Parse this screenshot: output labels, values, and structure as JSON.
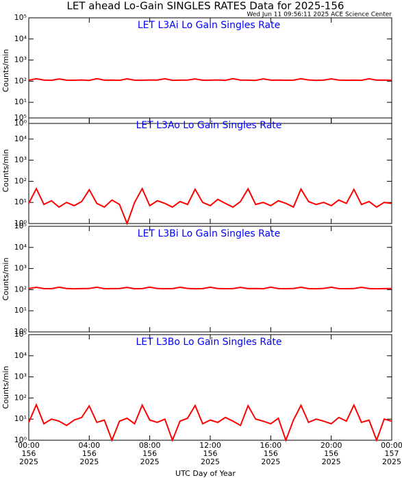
{
  "header": {
    "title": "LET ahead Lo-Gain SINGLES RATES Data for 2025-156",
    "timestamp": "Wed Jun 11 09:56:11 2025 ACE Science Center"
  },
  "chart_data": [
    {
      "type": "line",
      "title": "LET L3Ai Lo Gain Singles Rate",
      "ylabel": "Counts/min",
      "log": true,
      "xlim": [
        0,
        24
      ],
      "xticks": [
        0,
        4,
        8,
        12,
        16,
        20,
        24
      ],
      "ylim": [
        1,
        100000
      ],
      "yticks": [
        {
          "value": 1,
          "label": "10⁰"
        },
        {
          "value": 10,
          "label": "10¹"
        },
        {
          "value": 100,
          "label": "10²"
        },
        {
          "value": 1000,
          "label": "10³"
        },
        {
          "value": 10000,
          "label": "10⁴"
        },
        {
          "value": 100000,
          "label": "10⁵"
        }
      ],
      "x": [
        0,
        0.5,
        1,
        1.5,
        2,
        2.5,
        3,
        3.5,
        4,
        4.5,
        5,
        5.5,
        6,
        6.5,
        7,
        7.5,
        8,
        8.5,
        9,
        9.5,
        10,
        10.5,
        11,
        11.5,
        12,
        12.5,
        13,
        13.5,
        14,
        14.5,
        15,
        15.5,
        16,
        16.5,
        17,
        17.5,
        18,
        18.5,
        19,
        19.5,
        20,
        20.5,
        21,
        21.5,
        22,
        22.5,
        23,
        23.5,
        24
      ],
      "series": [
        {
          "color": "#ff0000",
          "values": [
            112,
            130,
            113,
            110,
            128,
            112,
            111,
            114,
            109,
            131,
            112,
            113,
            110,
            129,
            112,
            111,
            114,
            113,
            130,
            110,
            112,
            113,
            128,
            111,
            112,
            114,
            110,
            131,
            113,
            112,
            109,
            129,
            112,
            113,
            111,
            112,
            130,
            114,
            110,
            112,
            129,
            113,
            111,
            112,
            110,
            130,
            112,
            113,
            111
          ]
        }
      ]
    },
    {
      "type": "line",
      "title": "LET L3Ao Lo Gain Singles Rate",
      "ylabel": "Counts/min",
      "log": true,
      "xlim": [
        0,
        24
      ],
      "xticks": [
        0,
        4,
        8,
        12,
        16,
        20,
        24
      ],
      "ylim": [
        1,
        100000
      ],
      "yticks": [
        {
          "value": 1,
          "label": "10⁰"
        },
        {
          "value": 10,
          "label": "10¹"
        },
        {
          "value": 100,
          "label": "10²"
        },
        {
          "value": 1000,
          "label": "10³"
        },
        {
          "value": 10000,
          "label": "10⁴"
        },
        {
          "value": 100000,
          "label": "10⁵"
        }
      ],
      "x": [
        0,
        0.5,
        1,
        1.5,
        2,
        2.5,
        3,
        3.5,
        4,
        4.5,
        5,
        5.5,
        6,
        6.5,
        7,
        7.5,
        8,
        8.5,
        9,
        9.5,
        10,
        10.5,
        11,
        11.5,
        12,
        12.5,
        13,
        13.5,
        14,
        14.5,
        15,
        15.5,
        16,
        16.5,
        17,
        17.5,
        18,
        18.5,
        19,
        19.5,
        20,
        20.5,
        21,
        21.5,
        22,
        22.5,
        23,
        23.5,
        24
      ],
      "series": [
        {
          "color": "#ff0000",
          "values": [
            9,
            45,
            8,
            12,
            6,
            10,
            7,
            11,
            40,
            9,
            6,
            13,
            8,
            1,
            10,
            45,
            7,
            12,
            9,
            6,
            11,
            8,
            42,
            10,
            7,
            14,
            9,
            6,
            11,
            44,
            8,
            10,
            7,
            12,
            9,
            6,
            43,
            11,
            8,
            10,
            7,
            13,
            9,
            41,
            8,
            11,
            6,
            10,
            9
          ]
        }
      ]
    },
    {
      "type": "line",
      "title": "LET L3Bi Lo Gain Singles Rate",
      "ylabel": "Counts/min",
      "log": true,
      "xlim": [
        0,
        24
      ],
      "xticks": [
        0,
        4,
        8,
        12,
        16,
        20,
        24
      ],
      "ylim": [
        1,
        100000
      ],
      "yticks": [
        {
          "value": 1,
          "label": "10⁰"
        },
        {
          "value": 10,
          "label": "10¹"
        },
        {
          "value": 100,
          "label": "10²"
        },
        {
          "value": 1000,
          "label": "10³"
        },
        {
          "value": 10000,
          "label": "10⁴"
        },
        {
          "value": 100000,
          "label": "10⁵"
        }
      ],
      "x": [
        0,
        0.5,
        1,
        1.5,
        2,
        2.5,
        3,
        3.5,
        4,
        4.5,
        5,
        5.5,
        6,
        6.5,
        7,
        7.5,
        8,
        8.5,
        9,
        9.5,
        10,
        10.5,
        11,
        11.5,
        12,
        12.5,
        13,
        13.5,
        14,
        14.5,
        15,
        15.5,
        16,
        16.5,
        17,
        17.5,
        18,
        18.5,
        19,
        19.5,
        20,
        20.5,
        21,
        21.5,
        22,
        22.5,
        23,
        23.5,
        24
      ],
      "series": [
        {
          "color": "#ff0000",
          "values": [
            113,
            129,
            112,
            111,
            130,
            113,
            110,
            112,
            114,
            130,
            111,
            112,
            113,
            128,
            110,
            112,
            131,
            113,
            111,
            112,
            129,
            114,
            110,
            112,
            130,
            113,
            111,
            112,
            128,
            112,
            113,
            110,
            131,
            112,
            111,
            113,
            129,
            112,
            110,
            114,
            130,
            112,
            111,
            113,
            129,
            112,
            110,
            112,
            113
          ]
        }
      ]
    },
    {
      "type": "line",
      "title": "LET L3Bo Lo Gain Singles Rate",
      "ylabel": "Counts/min",
      "log": true,
      "xlabel": "UTC Day of Year",
      "xlim": [
        0,
        24
      ],
      "xticks": [
        {
          "value": 0,
          "label": "00:00",
          "day": "156",
          "year": "2025"
        },
        {
          "value": 4,
          "label": "04:00",
          "day": "156",
          "year": "2025"
        },
        {
          "value": 8,
          "label": "08:00",
          "day": "156",
          "year": "2025"
        },
        {
          "value": 12,
          "label": "12:00",
          "day": "156",
          "year": "2025"
        },
        {
          "value": 16,
          "label": "16:00",
          "day": "156",
          "year": "2025"
        },
        {
          "value": 20,
          "label": "20:00",
          "day": "156",
          "year": "2025"
        },
        {
          "value": 24,
          "label": "00:00",
          "day": "157",
          "year": "2025"
        }
      ],
      "ylim": [
        1,
        100000
      ],
      "yticks": [
        {
          "value": 1,
          "label": "10⁰"
        },
        {
          "value": 10,
          "label": "10¹"
        },
        {
          "value": 100,
          "label": "10²"
        },
        {
          "value": 1000,
          "label": "10³"
        },
        {
          "value": 10000,
          "label": "10⁴"
        },
        {
          "value": 100000,
          "label": "10⁵"
        }
      ],
      "x": [
        0,
        0.5,
        1,
        1.5,
        2,
        2.5,
        3,
        3.5,
        4,
        4.5,
        5,
        5.5,
        6,
        6.5,
        7,
        7.5,
        8,
        8.5,
        9,
        9.5,
        10,
        10.5,
        11,
        11.5,
        12,
        12.5,
        13,
        13.5,
        14,
        14.5,
        15,
        15.5,
        16,
        16.5,
        17,
        17.5,
        18,
        18.5,
        19,
        19.5,
        20,
        20.5,
        21,
        21.5,
        22,
        22.5,
        23,
        23.5,
        24
      ],
      "series": [
        {
          "color": "#ff0000",
          "values": [
            7,
            48,
            6,
            10,
            8,
            5,
            9,
            12,
            42,
            7,
            9,
            1,
            8,
            11,
            6,
            46,
            9,
            7,
            10,
            1,
            8,
            11,
            44,
            6,
            9,
            7,
            12,
            8,
            5,
            43,
            10,
            8,
            6,
            11,
            1,
            9,
            45,
            7,
            10,
            8,
            6,
            12,
            8,
            46,
            7,
            9,
            1,
            10,
            8
          ]
        }
      ]
    }
  ]
}
